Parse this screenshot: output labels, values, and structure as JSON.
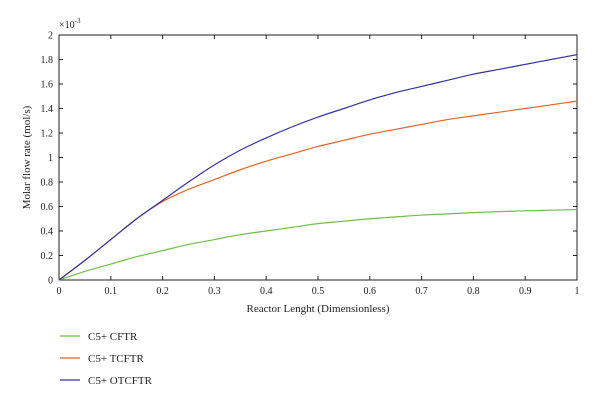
{
  "chart_data": {
    "type": "line",
    "xlabel": "Reactor Lenght (Dimensionless)",
    "ylabel": "Molar flow rate (mol/s)",
    "multiplier_label": "×10",
    "multiplier_exp": "-3",
    "xlim": [
      0,
      1
    ],
    "ylim": [
      0,
      2
    ],
    "x_ticks": [
      "0",
      "0.1",
      "0.2",
      "0.3",
      "0.4",
      "0.5",
      "0.6",
      "0.7",
      "0.8",
      "0.9",
      "1"
    ],
    "y_ticks": [
      "0",
      "0.2",
      "0.4",
      "0.6",
      "0.8",
      "1",
      "1.2",
      "1.4",
      "1.6",
      "1.8",
      "2"
    ],
    "grid": false,
    "legend_position": "bottom-left",
    "series": [
      {
        "name": "C5+ CFTR",
        "color": "#6fbf4a",
        "x": [
          0,
          0.05,
          0.1,
          0.15,
          0.2,
          0.25,
          0.3,
          0.35,
          0.4,
          0.45,
          0.5,
          0.55,
          0.6,
          0.65,
          0.7,
          0.75,
          0.8,
          0.85,
          0.9,
          0.95,
          1
        ],
        "y": [
          0,
          0.07,
          0.13,
          0.19,
          0.24,
          0.29,
          0.33,
          0.37,
          0.4,
          0.43,
          0.46,
          0.48,
          0.5,
          0.515,
          0.53,
          0.54,
          0.55,
          0.558,
          0.565,
          0.57,
          0.575
        ]
      },
      {
        "name": "C5+ TCFTR",
        "color": "#e0652a",
        "x": [
          0,
          0.05,
          0.1,
          0.15,
          0.2,
          0.25,
          0.3,
          0.35,
          0.4,
          0.45,
          0.5,
          0.55,
          0.6,
          0.65,
          0.7,
          0.75,
          0.8,
          0.85,
          0.9,
          0.95,
          1
        ],
        "y": [
          0,
          0.16,
          0.33,
          0.5,
          0.64,
          0.74,
          0.82,
          0.9,
          0.97,
          1.03,
          1.09,
          1.14,
          1.19,
          1.23,
          1.27,
          1.31,
          1.34,
          1.37,
          1.4,
          1.43,
          1.46
        ]
      },
      {
        "name": "C5+ OTCFTR",
        "color": "#34349a",
        "x": [
          0,
          0.05,
          0.1,
          0.15,
          0.2,
          0.25,
          0.3,
          0.35,
          0.4,
          0.45,
          0.5,
          0.55,
          0.6,
          0.65,
          0.7,
          0.75,
          0.8,
          0.85,
          0.9,
          0.95,
          1
        ],
        "y": [
          0,
          0.16,
          0.33,
          0.5,
          0.65,
          0.8,
          0.94,
          1.06,
          1.16,
          1.25,
          1.33,
          1.4,
          1.47,
          1.53,
          1.58,
          1.63,
          1.68,
          1.72,
          1.76,
          1.8,
          1.84
        ]
      }
    ]
  }
}
